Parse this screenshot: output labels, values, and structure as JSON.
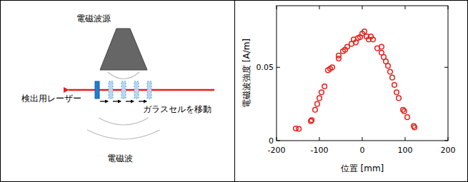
{
  "chart_data": {
    "type": "scatter",
    "x": [
      -155,
      -148,
      -120,
      -118,
      -110,
      -105,
      -100,
      -95,
      -88,
      -80,
      -75,
      -70,
      -55,
      -55,
      -45,
      -40,
      -35,
      -25,
      -20,
      -15,
      -10,
      -5,
      0,
      5,
      10,
      15,
      20,
      25,
      35,
      45,
      45,
      50,
      55,
      60,
      65,
      70,
      75,
      80,
      85,
      95,
      98,
      105,
      120,
      122
    ],
    "values": [
      0.0083,
      0.008,
      0.0133,
      0.014,
      0.021,
      0.025,
      0.029,
      0.033,
      0.037,
      0.048,
      0.049,
      0.05,
      0.056,
      0.058,
      0.061,
      0.062,
      0.064,
      0.066,
      0.069,
      0.067,
      0.07,
      0.0706,
      0.073,
      0.0745,
      0.071,
      0.069,
      0.071,
      0.069,
      0.063,
      0.064,
      0.06,
      0.057,
      0.054,
      0.051,
      0.047,
      0.043,
      0.038,
      0.033,
      0.029,
      0.021,
      0.02,
      0.016,
      0.01,
      0.009
    ],
    "color": "#e8201a",
    "marker": "circle",
    "x_label": "位置 [mm]",
    "y_label": "電磁波強度 [A/m]",
    "xlim": [
      -200,
      200
    ],
    "ylim": [
      0,
      0.092
    ],
    "xticks": [
      -200,
      -100,
      0,
      100,
      200
    ],
    "yticks": [
      0,
      0.05
    ]
  },
  "diagram": {
    "source_label": "電磁波源",
    "laser_label": "検出用レーザー",
    "cell_label": "ガラスセルを移動",
    "wave_label": "電磁波"
  }
}
